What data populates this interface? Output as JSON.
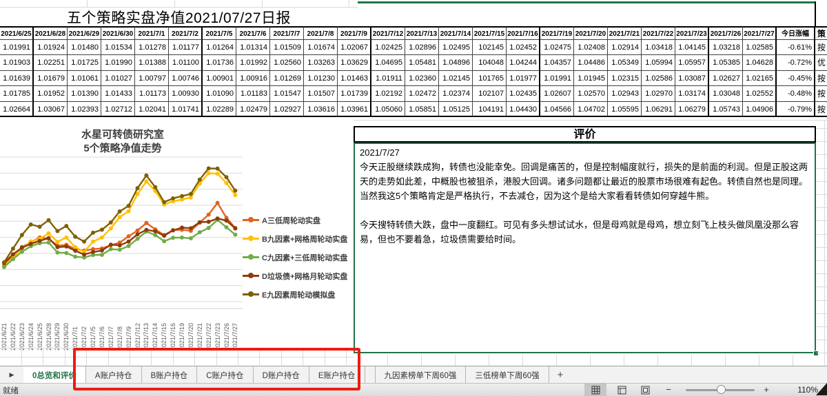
{
  "title": "五个策略实盘净值2021/07/27日报",
  "table": {
    "date_headers": [
      "2021/6/25",
      "2021/6/28",
      "2021/6/29",
      "2021/6/30",
      "2021/7/1",
      "2021/7/2",
      "2021/7/5",
      "2021/7/6",
      "2021/7/7",
      "2021/7/8",
      "2021/7/9",
      "2021/7/12",
      "2021/7/13",
      "2021/7/14",
      "2021/7/15",
      "2021/7/16",
      "2021/7/19",
      "2021/7/20",
      "2021/7/21",
      "2021/7/22",
      "2021/7/23",
      "2021/7/26",
      "2021/7/27"
    ],
    "change_header": "今日涨幅",
    "strategy_header": "策",
    "week_break_after": [
      0,
      5,
      10,
      15,
      20,
      22
    ],
    "rows": [
      {
        "values": [
          "1.01991",
          "1.01924",
          "1.01480",
          "1.01534",
          "1.01278",
          "1.01177",
          "1.01264",
          "1.01314",
          "1.01509",
          "1.01674",
          "1.02067",
          "1.02425",
          "1.02896",
          "1.02495",
          "102145",
          "1.02452",
          "1.02475",
          "1.02408",
          "1.02914",
          "1.03418",
          "1.04145",
          "1.03218",
          "1.02585"
        ],
        "change": "-0.61%",
        "strategy": "按"
      },
      {
        "values": [
          "1.01903",
          "1.02251",
          "1.01725",
          "1.01990",
          "1.01388",
          "1.01100",
          "1.01736",
          "1.01992",
          "1.02560",
          "1.03263",
          "1.03629",
          "1.04695",
          "1.05481",
          "1.04896",
          "104048",
          "1.04244",
          "1.04357",
          "1.04486",
          "1.05349",
          "1.05994",
          "1.05957",
          "1.05385",
          "1.04628"
        ],
        "change": "-0.72%",
        "strategy": "优"
      },
      {
        "values": [
          "1.01639",
          "1.01679",
          "1.01061",
          "1.01027",
          "1.00797",
          "1.00746",
          "1.00901",
          "1.00916",
          "1.01269",
          "1.01230",
          "1.01463",
          "1.01911",
          "1.02360",
          "1.02145",
          "101765",
          "1.01977",
          "1.01991",
          "1.01945",
          "1.02315",
          "1.02586",
          "1.03087",
          "1.02627",
          "1.02165"
        ],
        "change": "-0.45%",
        "strategy": "按"
      },
      {
        "values": [
          "1.01785",
          "1.01952",
          "1.01390",
          "1.01433",
          "1.01173",
          "1.00930",
          "1.01090",
          "1.01183",
          "1.01547",
          "1.01507",
          "1.01739",
          "1.02192",
          "1.02472",
          "1.02374",
          "102107",
          "1.02435",
          "1.02607",
          "1.02570",
          "1.02943",
          "1.02970",
          "1.03174",
          "1.03048",
          "1.02552"
        ],
        "change": "-0.48%",
        "strategy": "按"
      },
      {
        "values": [
          "1.02664",
          "1.03067",
          "1.02393",
          "1.02712",
          "1.02041",
          "1.01741",
          "1.02289",
          "1.02479",
          "1.02927",
          "1.03616",
          "1.03961",
          "1.05060",
          "1.05851",
          "1.05125",
          "104191",
          "1.04430",
          "1.04566",
          "1.04702",
          "1.05595",
          "1.06291",
          "1.06279",
          "1.05743",
          "1.04906"
        ],
        "change": "-0.79%",
        "strategy": "按"
      }
    ]
  },
  "chart": {
    "title_line1": "水星可转债研究室",
    "title_line2": "5个策略净值走势"
  },
  "chart_data": {
    "type": "line",
    "x": [
      "2021/6/21",
      "2021/6/22",
      "2021/6/23",
      "2021/6/24",
      "2021/6/25",
      "2021/6/28",
      "2021/6/29",
      "2021/6/30",
      "2021/7/1",
      "2021/7/2",
      "2021/7/5",
      "2021/7/6",
      "2021/7/7",
      "2021/7/8",
      "2021/7/9",
      "2021/7/12",
      "2021/7/13",
      "2021/7/14",
      "2021/7/15",
      "2021/7/16",
      "2021/7/19",
      "2021/7/20",
      "2021/7/21",
      "2021/7/22",
      "2021/7/23",
      "2021/7/26",
      "2021/7/27"
    ],
    "ylim": [
      0.98,
      1.07
    ],
    "gridline_step": 0.01,
    "grid": true,
    "legend_position": "right",
    "series": [
      {
        "name": "A三低周轮动实盘",
        "color": "#E2621F",
        "values": [
          1.003,
          1.0085,
          1.014,
          1.017,
          1.01991,
          1.01924,
          1.0148,
          1.01534,
          1.01278,
          1.01177,
          1.01264,
          1.01314,
          1.01509,
          1.01674,
          1.02067,
          1.02425,
          1.02896,
          1.02495,
          1.02145,
          1.02452,
          1.02475,
          1.02408,
          1.02914,
          1.03418,
          1.04145,
          1.03218,
          1.02585
        ]
      },
      {
        "name": "B九因素+网格周轮动实盘",
        "color": "#FFC000",
        "values": [
          1.002,
          1.0075,
          1.013,
          1.0175,
          1.01903,
          1.02251,
          1.01725,
          1.0199,
          1.01388,
          1.011,
          1.01736,
          1.01992,
          1.0256,
          1.03263,
          1.03629,
          1.04695,
          1.05481,
          1.04896,
          1.04048,
          1.04244,
          1.04357,
          1.04486,
          1.05349,
          1.05994,
          1.05957,
          1.05385,
          1.04628
        ]
      },
      {
        "name": "C九因素+三低周轮动实盘",
        "color": "#70AD47",
        "values": [
          1.0015,
          1.0065,
          1.011,
          1.0145,
          1.01639,
          1.01679,
          1.01061,
          1.01027,
          1.00797,
          1.00746,
          1.00901,
          1.00916,
          1.01269,
          1.0123,
          1.01463,
          1.01911,
          1.0236,
          1.02145,
          1.01765,
          1.01977,
          1.01991,
          1.01945,
          1.02315,
          1.02586,
          1.03087,
          1.02627,
          1.02165
        ]
      },
      {
        "name": "D垃圾债+网格月轮动实盘",
        "color": "#8E3B0A",
        "values": [
          1.004,
          1.0095,
          1.0135,
          1.016,
          1.01785,
          1.01952,
          1.0139,
          1.01433,
          1.01173,
          1.0093,
          1.0109,
          1.01183,
          1.01547,
          1.01507,
          1.01739,
          1.02192,
          1.02472,
          1.02374,
          1.02107,
          1.02435,
          1.02607,
          1.0257,
          1.02943,
          1.0297,
          1.03174,
          1.03048,
          1.02552
        ]
      },
      {
        "name": "E九因素周轮动模拟盘",
        "color": "#7F6000",
        "values": [
          1.0045,
          1.013,
          1.0215,
          1.028,
          1.02664,
          1.03067,
          1.02393,
          1.02712,
          1.02041,
          1.01741,
          1.02289,
          1.02479,
          1.02927,
          1.03616,
          1.03961,
          1.0506,
          1.05851,
          1.05125,
          1.04191,
          1.0443,
          1.04566,
          1.04702,
          1.05595,
          1.06291,
          1.06279,
          1.05743,
          1.04906
        ]
      }
    ]
  },
  "evaluation": {
    "header": "评价",
    "date": "2021/7/27",
    "paragraph1": "今天正股继续跌成狗，转债也没能幸免。回调是痛苦的，但是控制幅度就行，损失的是前面的利润。但是正股这两天的走势如此差，中概股也被狙杀，港股大回调。诸多问题都让最近的股票市场很难有起色。转债自然也是同理。当然我这5个策略肯定是严格执行，不去减仓，因为这个是给大家看看转债如何穿越牛熊。",
    "paragraph2": "今天搜特转债大跌，盘中一度翻红。可见有多头想试试水，但是母鸡就是母鸡，想立刻飞上枝头做凤凰没那么容易，但也不要着急，垃圾债需要给时间。"
  },
  "sheet_tabs": {
    "scroll_arrow": "▶",
    "active": "0总览和评价",
    "tabs": [
      "A账户持仓",
      "B账户持仓",
      "C账户持仓",
      "D账户持仓",
      "E账户持仓",
      "九因素榜单下周60强",
      "三低榜单下周60强"
    ],
    "add_label": "+"
  },
  "status_bar": {
    "ready": "就绪",
    "zoom": "110%",
    "zoom_minus": "−",
    "zoom_plus": "+"
  },
  "colors": {
    "selection_green": "#217346",
    "annotation_red": "#ec1c12"
  }
}
